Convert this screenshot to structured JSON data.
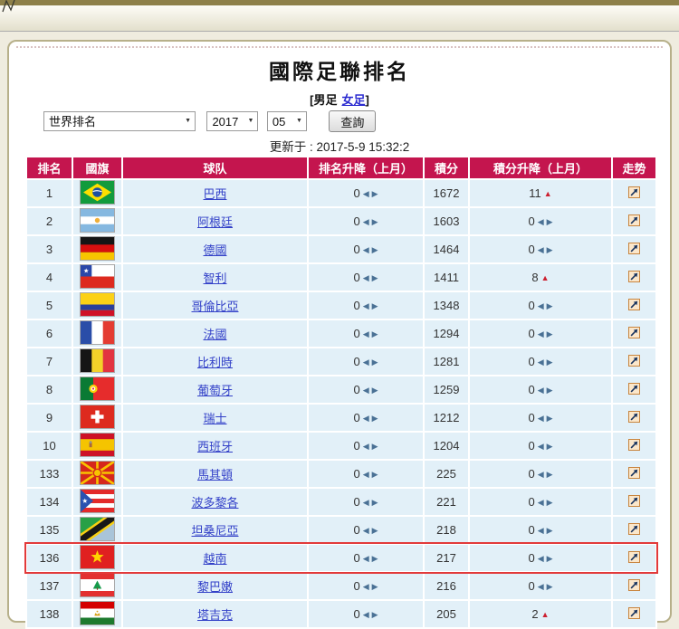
{
  "page": {
    "title": "國際足聯排名",
    "bracket_open": "[",
    "men_label": "男足",
    "women_label": "女足",
    "bracket_close": "]",
    "updated": "更新于 : 2017-5-9 15:32:2"
  },
  "controls": {
    "category_select": "世界排名",
    "year_select": "2017",
    "month_select": "05",
    "query_button": "查詢"
  },
  "table": {
    "headers": [
      "排名",
      "國旗",
      "球队",
      "排名升降（上月）",
      "積分",
      "積分升降（上月）",
      "走势"
    ],
    "rows": [
      {
        "rank": "1",
        "flag": "brazil",
        "team": "巴西",
        "rank_change": {
          "value": "0",
          "type": "none"
        },
        "points": "1672",
        "points_change": {
          "value": "11",
          "type": "up"
        },
        "highlighted": false
      },
      {
        "rank": "2",
        "flag": "argentina",
        "team": "阿根廷",
        "rank_change": {
          "value": "0",
          "type": "none"
        },
        "points": "1603",
        "points_change": {
          "value": "0",
          "type": "none"
        },
        "highlighted": false
      },
      {
        "rank": "3",
        "flag": "germany",
        "team": "德國",
        "rank_change": {
          "value": "0",
          "type": "none"
        },
        "points": "1464",
        "points_change": {
          "value": "0",
          "type": "none"
        },
        "highlighted": false
      },
      {
        "rank": "4",
        "flag": "chile",
        "team": "智利",
        "rank_change": {
          "value": "0",
          "type": "none"
        },
        "points": "1411",
        "points_change": {
          "value": "8",
          "type": "up"
        },
        "highlighted": false
      },
      {
        "rank": "5",
        "flag": "colombia",
        "team": "哥倫比亞",
        "rank_change": {
          "value": "0",
          "type": "none"
        },
        "points": "1348",
        "points_change": {
          "value": "0",
          "type": "none"
        },
        "highlighted": false
      },
      {
        "rank": "6",
        "flag": "france",
        "team": "法國",
        "rank_change": {
          "value": "0",
          "type": "none"
        },
        "points": "1294",
        "points_change": {
          "value": "0",
          "type": "none"
        },
        "highlighted": false
      },
      {
        "rank": "7",
        "flag": "belgium",
        "team": "比利時",
        "rank_change": {
          "value": "0",
          "type": "none"
        },
        "points": "1281",
        "points_change": {
          "value": "0",
          "type": "none"
        },
        "highlighted": false
      },
      {
        "rank": "8",
        "flag": "portugal",
        "team": "葡萄牙",
        "rank_change": {
          "value": "0",
          "type": "none"
        },
        "points": "1259",
        "points_change": {
          "value": "0",
          "type": "none"
        },
        "highlighted": false
      },
      {
        "rank": "9",
        "flag": "switzerland",
        "team": "瑞士",
        "rank_change": {
          "value": "0",
          "type": "none"
        },
        "points": "1212",
        "points_change": {
          "value": "0",
          "type": "none"
        },
        "highlighted": false
      },
      {
        "rank": "10",
        "flag": "spain",
        "team": "西班牙",
        "rank_change": {
          "value": "0",
          "type": "none"
        },
        "points": "1204",
        "points_change": {
          "value": "0",
          "type": "none"
        },
        "highlighted": false
      },
      {
        "rank": "133",
        "flag": "macedonia",
        "team": "馬其頓",
        "rank_change": {
          "value": "0",
          "type": "none"
        },
        "points": "225",
        "points_change": {
          "value": "0",
          "type": "none"
        },
        "highlighted": false
      },
      {
        "rank": "134",
        "flag": "puerto-rico",
        "team": "波多黎各",
        "rank_change": {
          "value": "0",
          "type": "none"
        },
        "points": "221",
        "points_change": {
          "value": "0",
          "type": "none"
        },
        "highlighted": false
      },
      {
        "rank": "135",
        "flag": "tanzania",
        "team": "坦桑尼亞",
        "rank_change": {
          "value": "0",
          "type": "none"
        },
        "points": "218",
        "points_change": {
          "value": "0",
          "type": "none"
        },
        "highlighted": false
      },
      {
        "rank": "136",
        "flag": "vietnam",
        "team": "越南",
        "rank_change": {
          "value": "0",
          "type": "none"
        },
        "points": "217",
        "points_change": {
          "value": "0",
          "type": "none"
        },
        "highlighted": true
      },
      {
        "rank": "137",
        "flag": "lebanon",
        "team": "黎巴嫩",
        "rank_change": {
          "value": "0",
          "type": "none"
        },
        "points": "216",
        "points_change": {
          "value": "0",
          "type": "none"
        },
        "highlighted": false
      },
      {
        "rank": "138",
        "flag": "tajikistan",
        "team": "塔吉克",
        "rank_change": {
          "value": "0",
          "type": "none"
        },
        "points": "205",
        "points_change": {
          "value": "2",
          "type": "up"
        },
        "highlighted": false
      }
    ]
  },
  "icons": {
    "left_arrow": "◀",
    "right_arrow": "▶",
    "up_triangle": "▲",
    "dropdown_arrow": "▼"
  },
  "colors": {
    "header_bg": "#c4154e",
    "row_bg": "#e2f0f8",
    "highlight_border": "#e23a3a",
    "link": "#3341c8",
    "up_triangle": "#cc2030",
    "change_arrow": "#4a7195",
    "panel_border": "#b7b08a",
    "top_bar": "#8e8049"
  }
}
